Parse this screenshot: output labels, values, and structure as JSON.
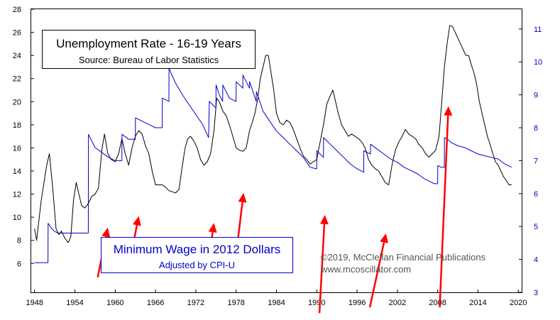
{
  "colors": {
    "unemployment": "#000000",
    "wage": "#0000cc",
    "arrow": "#ff0000",
    "right_axis_text": "#0000cc",
    "border": "#000000"
  },
  "chart_data": {
    "type": "line",
    "title": "Unemployment Rate - 16-19 Years",
    "subtitle": "Source: Bureau of Labor Statistics",
    "wage_title": "Minimum Wage in 2012 Dollars",
    "wage_subtitle": "Adjusted by CPI-U",
    "copyright": "©2019, McClellan Financial Publications",
    "website": "www.mcoscillator.com",
    "x_ticks": [
      "1948",
      "1954",
      "1960",
      "1966",
      "1972",
      "1978",
      "1984",
      "1990",
      "1996",
      "2002",
      "2008",
      "2014",
      "2020"
    ],
    "xlim": [
      1947.5,
      2020.5
    ],
    "left_axis": {
      "ticks": [
        6,
        8,
        10,
        12,
        14,
        16,
        18,
        20,
        22,
        24,
        26,
        28
      ],
      "ylim": [
        3.5,
        28
      ]
    },
    "right_axis": {
      "ticks": [
        3,
        4,
        5,
        6,
        7,
        8,
        9,
        10,
        11
      ],
      "ylim": [
        3,
        11.6
      ]
    },
    "series": [
      {
        "axis": "left",
        "x": [
          1948,
          1948.3,
          1948.6,
          1949,
          1949.4,
          1949.8,
          1950.2,
          1950.7,
          1951.2,
          1951.6,
          1952,
          1952.5,
          1953,
          1953.4,
          1953.8,
          1954.2,
          1954.6,
          1955,
          1955.5,
          1956,
          1956.5,
          1957,
          1957.5,
          1958,
          1958.4,
          1958.9,
          1959.4,
          1960,
          1960.5,
          1961,
          1961.5,
          1962,
          1962.5,
          1963,
          1963.5,
          1964,
          1964.5,
          1965,
          1965.5,
          1966,
          1966.5,
          1967,
          1967.5,
          1968,
          1968.5,
          1969,
          1969.5,
          1970,
          1970.4,
          1970.8,
          1971.2,
          1971.7,
          1972.2,
          1972.7,
          1973.2,
          1973.7,
          1974.2,
          1974.7,
          1975.1,
          1975.5,
          1976,
          1976.5,
          1977,
          1977.5,
          1978,
          1978.5,
          1979,
          1979.5,
          1980,
          1980.4,
          1980.8,
          1981.2,
          1981.6,
          1982,
          1982.4,
          1982.8,
          1983.2,
          1983.6,
          1984,
          1984.5,
          1985,
          1985.5,
          1986,
          1986.5,
          1987,
          1987.5,
          1988,
          1988.5,
          1989,
          1989.5,
          1990,
          1990.5,
          1991,
          1991.5,
          1992,
          1992.4,
          1992.8,
          1993.2,
          1993.7,
          1994.2,
          1994.7,
          1995.2,
          1995.7,
          1996.2,
          1996.7,
          1997.2,
          1997.7,
          1998.2,
          1998.7,
          1999.2,
          1999.7,
          2000.2,
          2000.7,
          2001.2,
          2001.7,
          2002.2,
          2002.7,
          2003.2,
          2003.7,
          2004.2,
          2004.7,
          2005.2,
          2005.7,
          2006.2,
          2006.7,
          2007.2,
          2007.7,
          2008.2,
          2008.6,
          2009,
          2009.4,
          2009.8,
          2010.2,
          2010.6,
          2011,
          2011.4,
          2011.8,
          2012.2,
          2012.6,
          2013,
          2013.4,
          2013.8,
          2014.2,
          2014.6,
          2015,
          2015.4,
          2015.8,
          2016.2,
          2016.6,
          2017,
          2017.4,
          2017.8,
          2018.2,
          2018.6,
          2019
        ],
        "values": [
          9.0,
          8.0,
          9.5,
          11.5,
          13.0,
          14.5,
          15.5,
          12.5,
          9.0,
          8.5,
          8.8,
          8.2,
          7.8,
          8.3,
          11.5,
          13.0,
          12.0,
          11.0,
          10.8,
          11.2,
          11.8,
          12.0,
          12.5,
          15.8,
          17.2,
          15.5,
          15.0,
          14.8,
          15.5,
          16.8,
          15.5,
          14.5,
          16.0,
          17.0,
          17.5,
          17.2,
          16.2,
          15.5,
          14.0,
          12.8,
          12.8,
          12.8,
          12.6,
          12.3,
          12.2,
          12.1,
          12.4,
          14.5,
          16.0,
          16.8,
          17.0,
          16.6,
          16.0,
          15.0,
          14.5,
          14.8,
          15.5,
          17.5,
          20.3,
          20.0,
          19.2,
          18.8,
          18.0,
          17.0,
          16.0,
          15.8,
          15.7,
          16.0,
          17.5,
          18.2,
          19.0,
          20.2,
          22.0,
          23.0,
          24.0,
          24.0,
          22.5,
          21.0,
          19.0,
          18.2,
          18.0,
          18.4,
          18.2,
          17.6,
          16.8,
          16.0,
          15.3,
          15.0,
          14.6,
          14.8,
          15.0,
          16.5,
          18.0,
          19.8,
          20.5,
          21.0,
          20.0,
          19.0,
          18.0,
          17.5,
          17.0,
          17.2,
          17.0,
          16.8,
          16.5,
          16.0,
          15.0,
          14.5,
          14.2,
          14.0,
          13.5,
          13.0,
          12.8,
          14.5,
          15.8,
          16.5,
          17.0,
          17.6,
          17.2,
          17.0,
          16.8,
          16.3,
          16.0,
          15.5,
          15.2,
          15.5,
          15.8,
          17.0,
          20.0,
          23.0,
          25.0,
          26.6,
          26.5,
          26.0,
          25.5,
          25.0,
          24.5,
          24.0,
          24.0,
          23.2,
          22.5,
          21.5,
          20.0,
          19.0,
          18.0,
          17.0,
          16.3,
          15.5,
          14.8,
          14.5,
          14.0,
          13.5,
          13.2,
          12.8,
          12.8
        ]
      },
      {
        "axis": "right",
        "x": [
          1948,
          1949.99,
          1950.01,
          1950.5,
          1951,
          1951.5,
          1952,
          1953,
          1954,
          1955,
          1955.99,
          1956.01,
          1957,
          1958,
          1959,
          1960,
          1960.99,
          1961.01,
          1962,
          1962.99,
          1963.01,
          1964,
          1965,
          1966,
          1966.99,
          1967.01,
          1967.99,
          1968.01,
          1969,
          1970,
          1971,
          1972,
          1973,
          1973.9,
          1974.01,
          1974.5,
          1974.99,
          1975.01,
          1975.5,
          1975.99,
          1976.01,
          1976.5,
          1977,
          1977.99,
          1978.01,
          1978.99,
          1979.01,
          1979.99,
          1980.01,
          1980.99,
          1981.01,
          1982,
          1983,
          1984,
          1985,
          1986,
          1987,
          1988,
          1989,
          1989.99,
          1990.01,
          1990.99,
          1991.01,
          1992,
          1993,
          1994,
          1995,
          1996,
          1996.5,
          1996.99,
          1997.01,
          1997.99,
          1998.01,
          1999,
          2000,
          2001,
          2002,
          2003,
          2004,
          2005,
          2006,
          2007,
          2007.5,
          2007.99,
          2008.01,
          2008.5,
          2008.99,
          2009.01,
          2009.5,
          2010,
          2011,
          2012,
          2013,
          2014,
          2015,
          2016,
          2017,
          2018,
          2019
        ],
        "values": [
          3.9,
          3.9,
          5.1,
          4.95,
          4.85,
          4.8,
          4.8,
          4.8,
          4.8,
          4.8,
          4.8,
          7.8,
          7.4,
          7.25,
          7.1,
          7.0,
          7.0,
          7.8,
          7.65,
          7.65,
          8.3,
          8.2,
          8.1,
          8.0,
          8.0,
          8.9,
          8.8,
          9.8,
          9.35,
          9.0,
          8.7,
          8.4,
          8.1,
          7.7,
          8.8,
          8.7,
          8.6,
          9.3,
          9.0,
          8.8,
          9.3,
          9.1,
          8.9,
          8.8,
          9.4,
          9.2,
          9.6,
          9.2,
          9.4,
          8.8,
          9.1,
          8.5,
          8.2,
          7.9,
          7.7,
          7.5,
          7.3,
          7.1,
          6.8,
          6.75,
          7.3,
          7.1,
          7.7,
          7.5,
          7.3,
          7.1,
          6.9,
          6.75,
          6.7,
          6.65,
          7.3,
          7.2,
          7.5,
          7.35,
          7.2,
          7.05,
          6.95,
          6.8,
          6.7,
          6.6,
          6.45,
          6.35,
          6.3,
          6.3,
          6.85,
          6.8,
          6.8,
          7.7,
          7.65,
          7.55,
          7.45,
          7.4,
          7.3,
          7.2,
          7.15,
          7.1,
          7.05,
          6.9,
          6.8
        ]
      }
    ],
    "arrows": [
      {
        "from": [
          1957.4,
          4.8
        ],
        "to": [
          1958.9,
          9.1
        ]
      },
      {
        "from": [
          1962.2,
          6.3
        ],
        "to": [
          1963.5,
          10.1
        ]
      },
      {
        "from": [
          1973.8,
          5.8
        ],
        "to": [
          1974.7,
          9.5
        ]
      },
      {
        "from": [
          1977.9,
          6.3
        ],
        "to": [
          1979.1,
          12.1
        ]
      },
      {
        "from": [
          1990.4,
          1.7
        ],
        "to": [
          1991.2,
          10.2
        ]
      },
      {
        "from": [
          1997.9,
          2.2
        ],
        "to": [
          2000.3,
          8.6
        ]
      },
      {
        "from": [
          2008.3,
          2.2
        ],
        "to": [
          2009.6,
          19.6
        ]
      }
    ]
  }
}
